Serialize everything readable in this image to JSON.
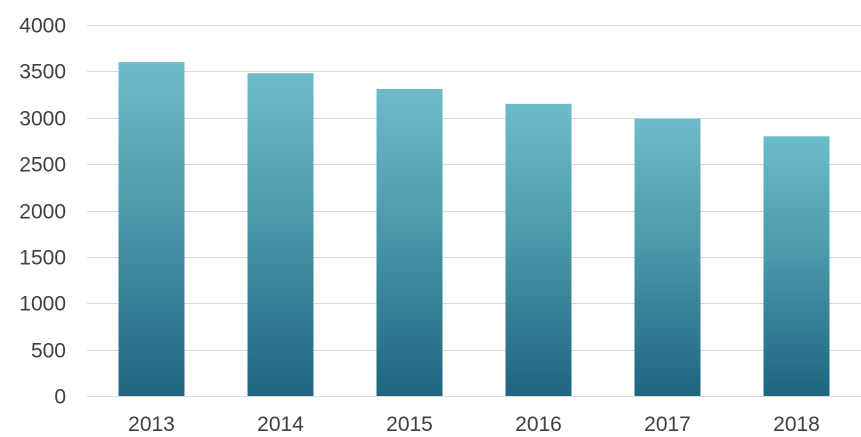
{
  "chart_data": {
    "type": "bar",
    "title": "",
    "xlabel": "",
    "ylabel": "",
    "categories": [
      "2013",
      "2014",
      "2015",
      "2016",
      "2017",
      "2018"
    ],
    "values": [
      3600,
      3480,
      3310,
      3150,
      2990,
      2800
    ],
    "ylim": [
      0,
      4000
    ],
    "yticks": [
      0,
      500,
      1000,
      1500,
      2000,
      2500,
      3000,
      3500,
      4000
    ],
    "grid": true,
    "legend": "none",
    "colors": {
      "bar_top": "#6cbccb",
      "bar_mid": "#4a9aaa",
      "bar_bottom": "#1d6580",
      "grid": "#d9d9d9",
      "text": "#404040"
    }
  }
}
